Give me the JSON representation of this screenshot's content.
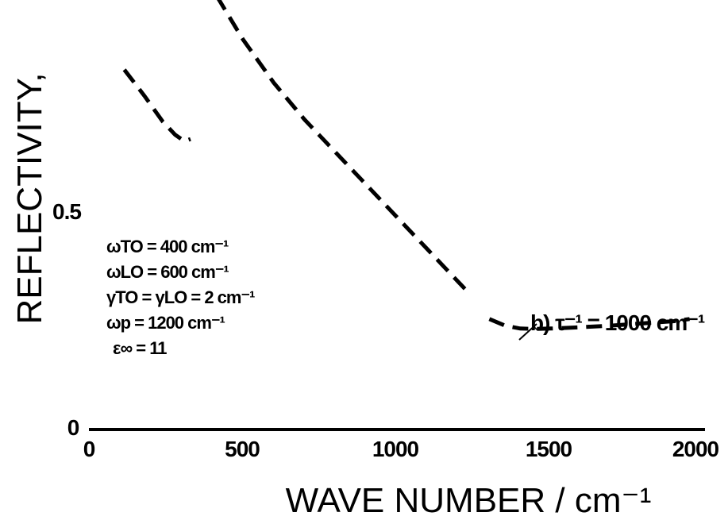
{
  "chart_data": {
    "type": "line",
    "xlabel": "WAVE NUMBER / cm⁻¹",
    "ylabel": "REFLECTIVITY,",
    "xlim": [
      0,
      2000
    ],
    "ylim": [
      0,
      1
    ],
    "x_ticks": [
      "0",
      "500",
      "1000",
      "1500",
      "2000"
    ],
    "y_ticks": [
      "0",
      "0.5"
    ],
    "grid": false,
    "parameters": [
      "ωTO = 400 cm⁻¹",
      "ωLO = 600 cm⁻¹",
      "γTO = γLO = 2 cm⁻¹",
      "ωp = 1200 cm⁻¹",
      "ε∞ = 11"
    ],
    "series": [
      {
        "label": "b) τ⁻¹ = 1000 cm⁻¹",
        "segments": [
          {
            "x": [
              115,
              180,
              240,
              280,
              310,
              330
            ],
            "y": [
              0.83,
              0.77,
              0.71,
              0.68,
              0.665,
              0.67
            ]
          },
          {
            "x": [
              415,
              500,
              600,
              700,
              800,
              900,
              1000,
              1100,
              1200,
              1240
            ],
            "y": [
              1.0,
              0.9,
              0.8,
              0.715,
              0.64,
              0.565,
              0.49,
              0.415,
              0.34,
              0.31
            ]
          },
          {
            "x": [
              1300,
              1350,
              1400,
              1450,
              1500,
              1600,
              1700,
              1800,
              1900,
              1950
            ],
            "y": [
              0.255,
              0.24,
              0.233,
              0.232,
              0.233,
              0.236,
              0.24,
              0.245,
              0.25,
              0.255
            ]
          }
        ]
      }
    ]
  }
}
